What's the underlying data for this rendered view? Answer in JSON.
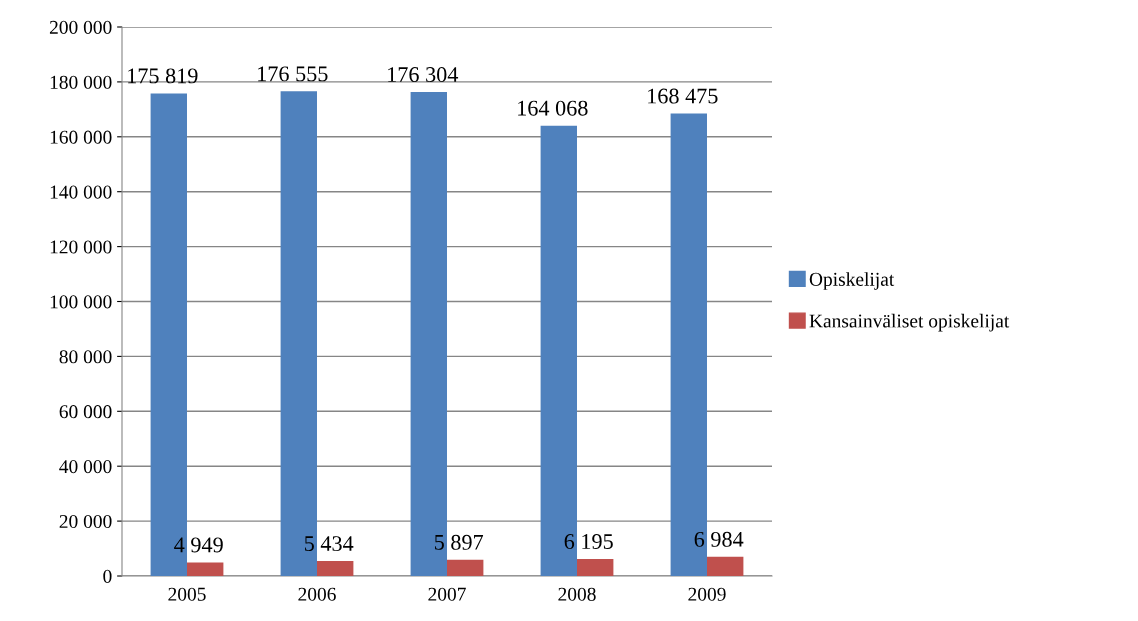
{
  "chart_data": {
    "type": "bar",
    "categories": [
      "2005",
      "2006",
      "2007",
      "2008",
      "2009"
    ],
    "series": [
      {
        "name": "Opiskelijat",
        "color": "#4f81bd",
        "values": [
          175819,
          176555,
          176304,
          164068,
          168475
        ],
        "value_labels": [
          "175 819",
          "176 555",
          "176 304",
          "164 068",
          "168 475"
        ]
      },
      {
        "name": "Kansainväliset opiskelijat",
        "color": "#c0504d",
        "values": [
          4949,
          5434,
          5897,
          6195,
          6984
        ],
        "value_labels": [
          "4 949",
          "5 434",
          "5 897",
          "6 195",
          "6 984"
        ]
      }
    ],
    "ylim": [
      0,
      200000
    ],
    "yticks": [
      {
        "value": 0,
        "label": "0"
      },
      {
        "value": 20000,
        "label": "20 000"
      },
      {
        "value": 40000,
        "label": "40 000"
      },
      {
        "value": 60000,
        "label": "60 000"
      },
      {
        "value": 80000,
        "label": "80 000"
      },
      {
        "value": 100000,
        "label": "100 000"
      },
      {
        "value": 120000,
        "label": "120 000"
      },
      {
        "value": 140000,
        "label": "140 000"
      },
      {
        "value": 160000,
        "label": "160 000"
      },
      {
        "value": 180000,
        "label": "180 000"
      },
      {
        "value": 200000,
        "label": "200 000"
      }
    ],
    "grid": "y",
    "legend": "right"
  }
}
